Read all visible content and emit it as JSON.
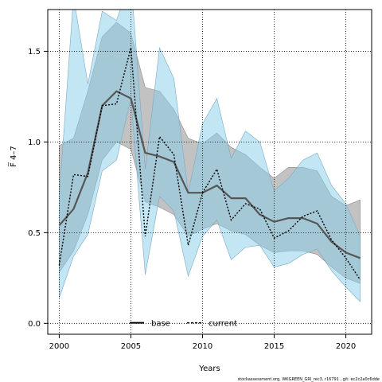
{
  "chart_data": {
    "type": "line",
    "xlabel": "Years",
    "ylabel": "F̅ 4–7",
    "xlim": [
      1999.2,
      2021.8
    ],
    "ylim": [
      -0.06,
      1.73
    ],
    "xticks": [
      2000,
      2005,
      2010,
      2015,
      2020
    ],
    "yticks": [
      0.0,
      0.5,
      1.0,
      1.5
    ],
    "ytick_labels": [
      "0.0",
      "0.5",
      "1.0",
      "1.5"
    ],
    "grid": "dotted",
    "legend_position": "bottom-center",
    "x": [
      2000,
      2001,
      2002,
      2003,
      2004,
      2005,
      2006,
      2007,
      2008,
      2009,
      2010,
      2011,
      2012,
      2013,
      2014,
      2015,
      2016,
      2017,
      2018,
      2019,
      2020,
      2021
    ],
    "series": [
      {
        "name": "base",
        "color": "#000000",
        "band_color": "#999999",
        "values": [
          0.54,
          0.63,
          0.83,
          1.2,
          1.28,
          1.24,
          0.94,
          0.92,
          0.89,
          0.72,
          0.72,
          0.76,
          0.69,
          0.69,
          0.6,
          0.56,
          0.58,
          0.58,
          0.55,
          0.45,
          0.39,
          0.36
        ],
        "upper": [
          0.98,
          1.02,
          1.28,
          1.58,
          1.66,
          1.6,
          1.3,
          1.28,
          1.18,
          1.02,
          0.99,
          1.05,
          0.97,
          0.93,
          0.86,
          0.8,
          0.86,
          0.86,
          0.84,
          0.7,
          0.65,
          0.68
        ],
        "lower": [
          0.28,
          0.4,
          0.6,
          0.9,
          1.0,
          0.96,
          0.67,
          0.64,
          0.6,
          0.48,
          0.52,
          0.55,
          0.51,
          0.49,
          0.43,
          0.39,
          0.4,
          0.4,
          0.38,
          0.31,
          0.25,
          0.22
        ]
      },
      {
        "name": "current",
        "color": "#000000",
        "band_color": "#87ceeb",
        "values": [
          0.32,
          0.82,
          0.81,
          1.2,
          1.21,
          1.52,
          0.48,
          1.03,
          0.93,
          0.43,
          0.72,
          0.85,
          0.57,
          0.66,
          0.63,
          0.47,
          0.51,
          0.59,
          0.62,
          0.46,
          0.36,
          0.24
        ],
        "upper": [
          0.7,
          1.8,
          1.32,
          1.72,
          1.67,
          1.9,
          0.85,
          1.52,
          1.35,
          0.72,
          1.1,
          1.24,
          0.91,
          1.06,
          1.0,
          0.73,
          0.8,
          0.9,
          0.94,
          0.76,
          0.66,
          0.48
        ],
        "lower": [
          0.14,
          0.37,
          0.49,
          0.84,
          0.9,
          1.24,
          0.27,
          0.7,
          0.62,
          0.26,
          0.48,
          0.57,
          0.35,
          0.42,
          0.43,
          0.31,
          0.33,
          0.38,
          0.41,
          0.29,
          0.2,
          0.12
        ]
      }
    ]
  },
  "footer": "stockassessment.org, WKGREEN_GRI_rec3, r16791 , git: ec2c2a0c6dde"
}
